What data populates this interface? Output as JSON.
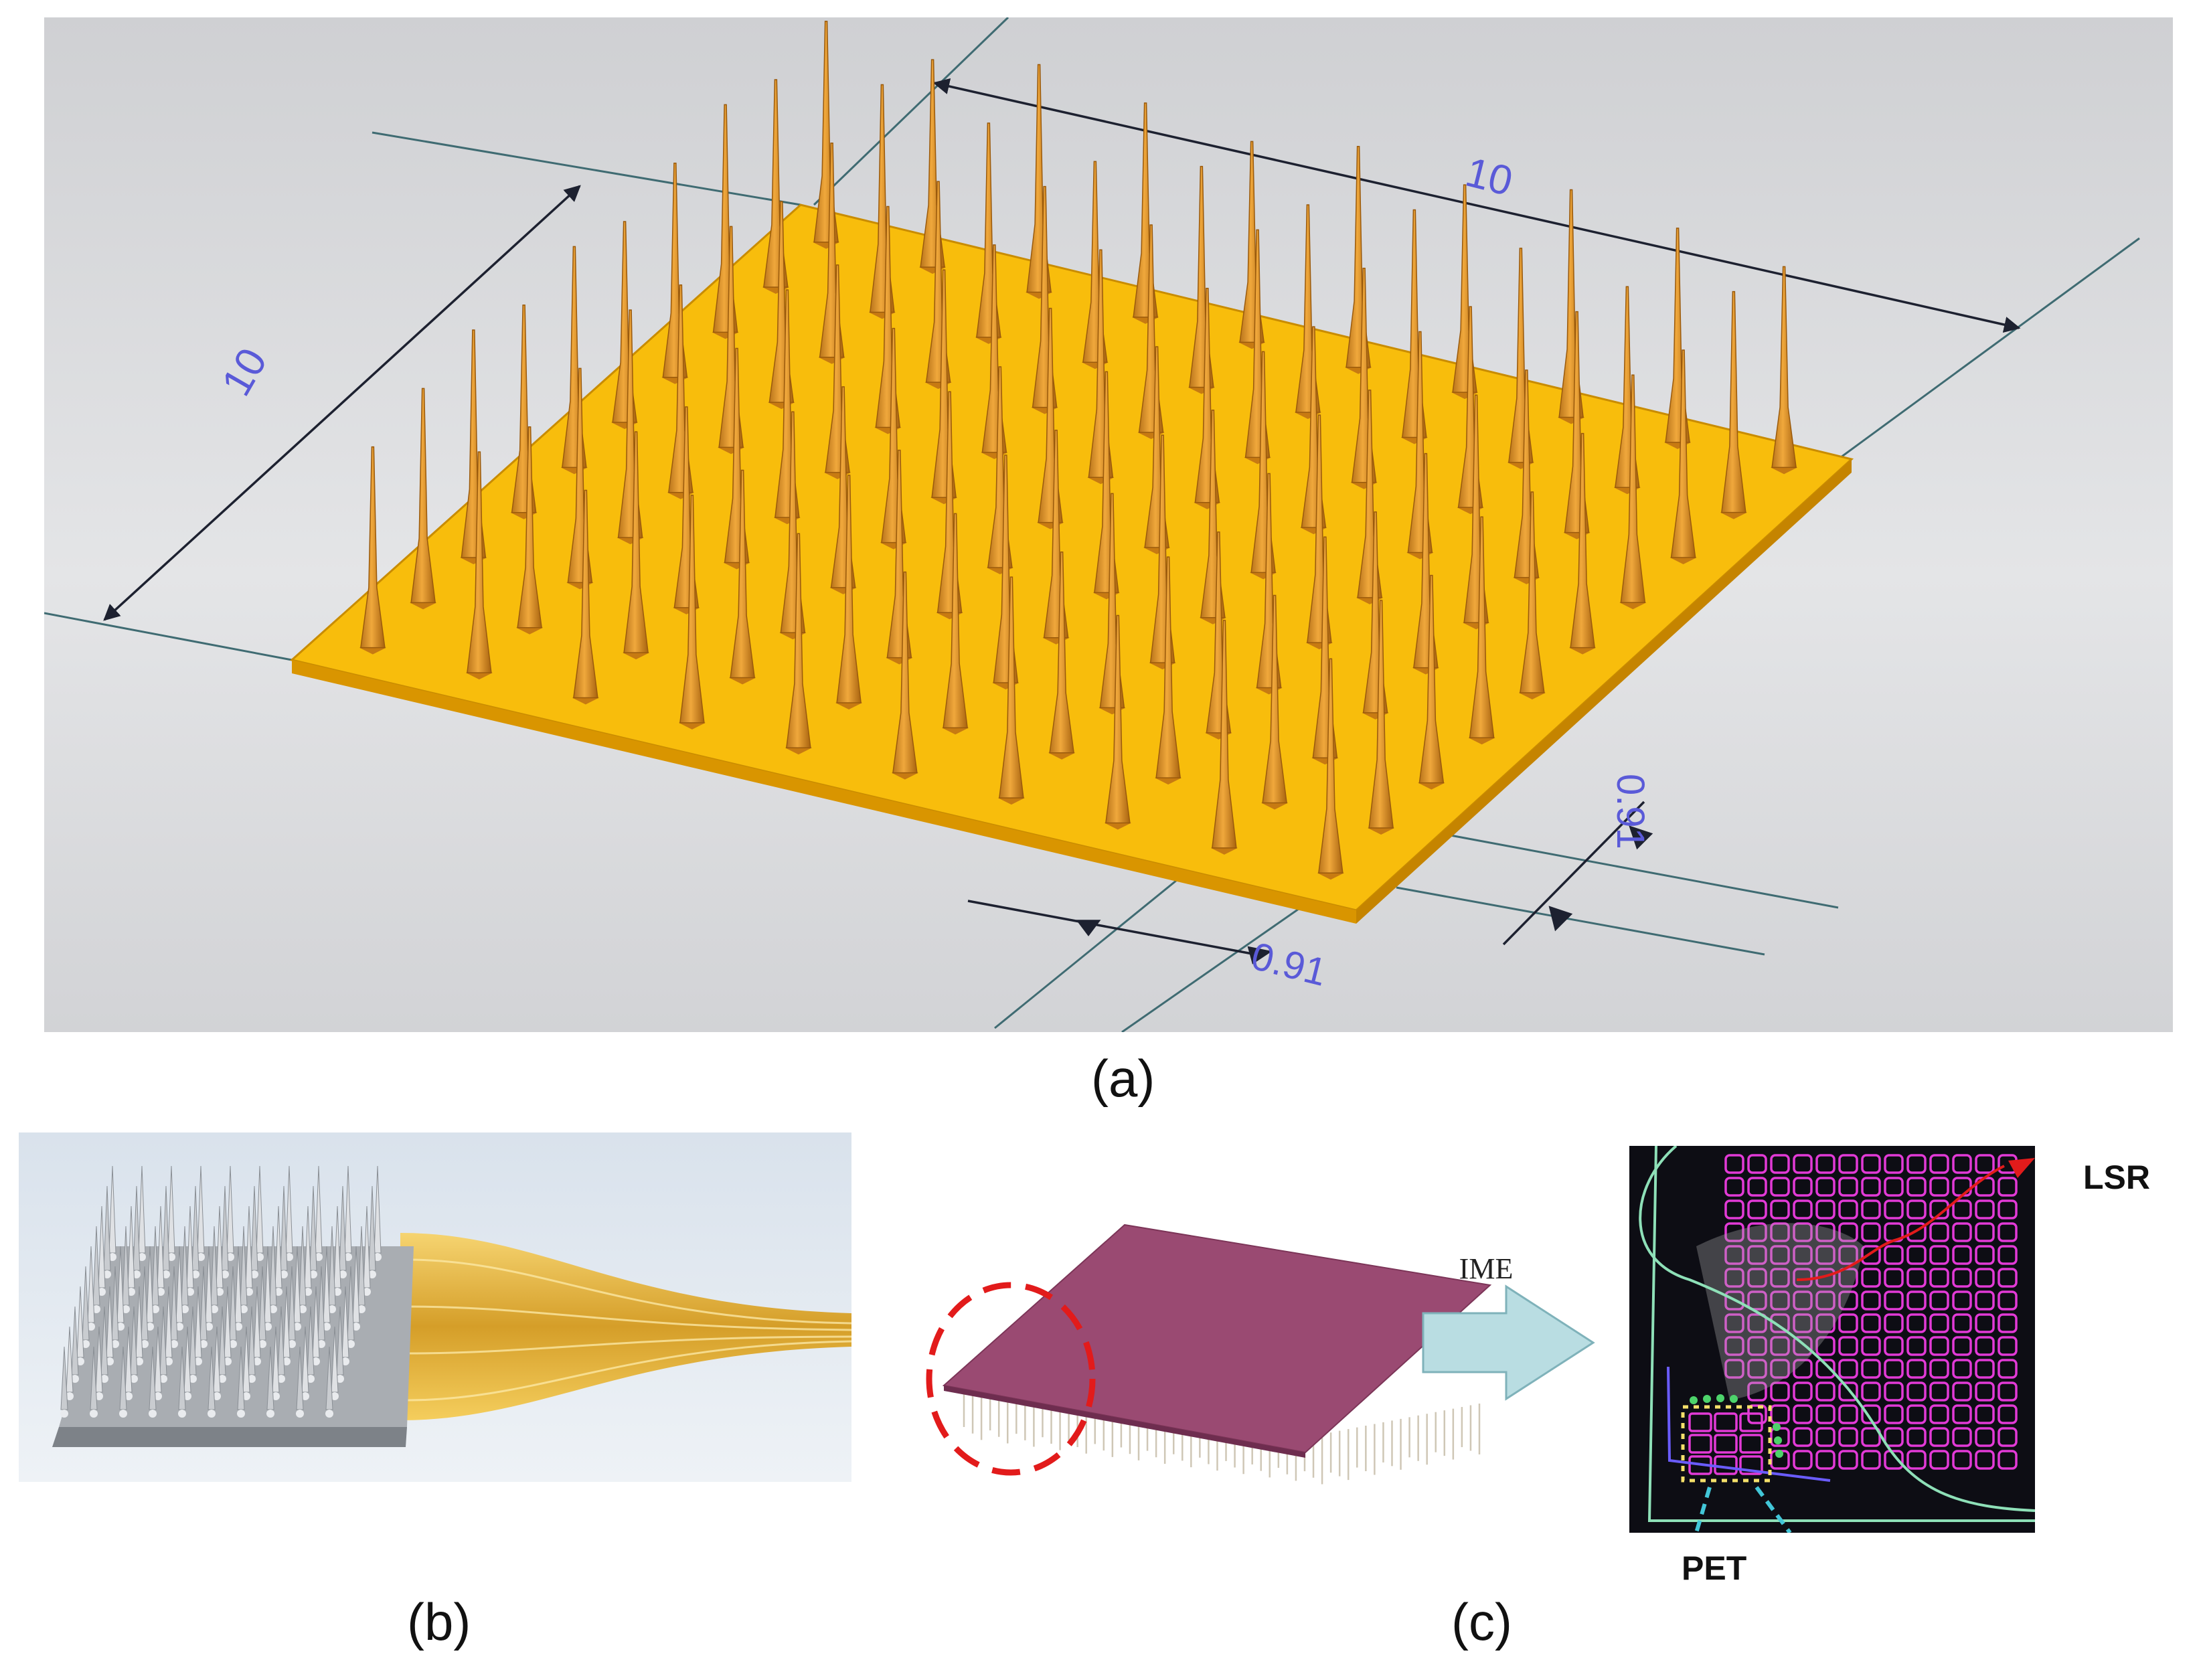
{
  "panel_a": {
    "dim_top": "10",
    "dim_left": "10",
    "dim_right": "0.91",
    "dim_bottom": "0.91",
    "caption": "(a)"
  },
  "panel_b": {
    "caption": "(b)"
  },
  "panel_c": {
    "arrow_label": "IME",
    "label_lsr": "LSR",
    "label_pet": "PET",
    "caption": "(c)"
  },
  "colors": {
    "substrate": "#f5b400",
    "needle": "#d98c1e",
    "cad_background": "#d9dadc",
    "dimension_line": "#2c2f38",
    "dimension_text": "#5a5ad8",
    "pad_purple": "#9a4a72",
    "grid_magenta": "#e23ad6",
    "highlight_red": "#e21b1b",
    "arrow_fill": "#b9dde2"
  }
}
